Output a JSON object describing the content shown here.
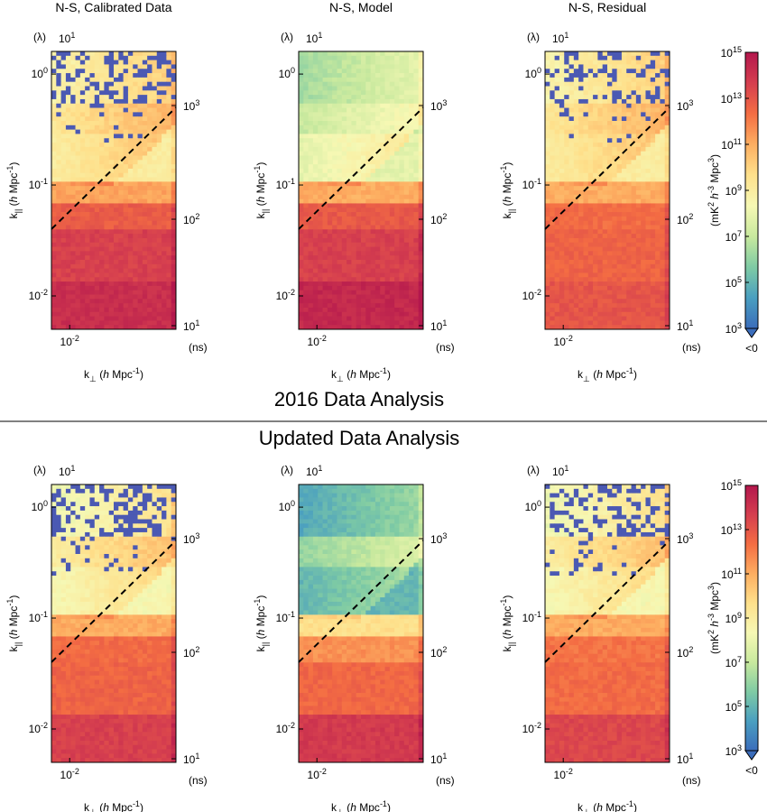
{
  "sections": [
    {
      "title": "2016 Data Analysis"
    },
    {
      "title": "Updated Data Analysis"
    }
  ],
  "panel_titles": [
    "N-S, Calibrated Data",
    "N-S, Model",
    "N-S, Residual"
  ],
  "axes": {
    "xlabel_base": "k",
    "xlabel_sub": "⊥",
    "ylabel_base": "k",
    "ylabel_sub": "||",
    "unit_h": "h",
    "unit_rest": " Mpc",
    "unit_exp": "-1",
    "top_axis_label": "(λ)",
    "top_tick": {
      "base": "10",
      "exp": "1"
    },
    "right_axis_label": "(ns)",
    "right_ticks": [
      {
        "base": "10",
        "exp": "1"
      },
      {
        "base": "10",
        "exp": "2"
      },
      {
        "base": "10",
        "exp": "3"
      }
    ],
    "left_ticks": [
      {
        "base": "10",
        "exp": "0"
      },
      {
        "base": "10",
        "exp": "-1"
      },
      {
        "base": "10",
        "exp": "-2"
      }
    ],
    "bottom_tick": {
      "base": "10",
      "exp": "-2"
    }
  },
  "colorbar": {
    "label_parts": [
      "(mK",
      "2",
      " ",
      "h",
      "-3",
      " Mpc",
      "3",
      ")"
    ],
    "ticks": [
      {
        "base": "10",
        "exp": "15"
      },
      {
        "base": "10",
        "exp": "13"
      },
      {
        "base": "10",
        "exp": "11"
      },
      {
        "base": "10",
        "exp": "9"
      },
      {
        "base": "10",
        "exp": "7"
      },
      {
        "base": "10",
        "exp": "5"
      },
      {
        "base": "10",
        "exp": "3"
      }
    ],
    "underflow_label": "<0",
    "colors": [
      "#3b6dbb",
      "#4a9fc0",
      "#7fcba4",
      "#c8e99e",
      "#f6f8b4",
      "#fee08b",
      "#fdae61",
      "#f46d43",
      "#d53e4f",
      "#b3174d"
    ]
  },
  "chart_data": {
    "type": "heatmap",
    "x_axis": {
      "quantity": "k_perp",
      "range": [
        0.007,
        0.08
      ],
      "scale": "log"
    },
    "y_axis": {
      "quantity": "k_parallel",
      "range": [
        0.005,
        1.6
      ],
      "scale": "log"
    },
    "color_scale": {
      "range": [
        1000,
        1000000000000000.0
      ],
      "scale": "log"
    },
    "wedge_line": {
      "style": "dashed",
      "from": [
        0.007,
        0.04
      ],
      "to": [
        0.08,
        0.5
      ]
    },
    "rows": [
      {
        "section": "2016 Data Analysis",
        "panels": [
          {
            "title": "N-S, Calibrated Data",
            "bands": [
              {
                "k_par": [
                  0.005,
                  0.014
                ],
                "log10_power": 14.2
              },
              {
                "k_par": [
                  0.014,
                  0.038
                ],
                "log10_power": 13.6
              },
              {
                "k_par": [
                  0.038,
                  0.07
                ],
                "log10_power": 12.8
              },
              {
                "k_par": [
                  0.07,
                  0.11
                ],
                "log10_power": 11.2
              },
              {
                "k_par": [
                  0.11,
                  0.3
                ],
                "log10_power": 9.0
              },
              {
                "k_par": [
                  0.3,
                  0.55
                ],
                "log10_power": 9.3
              },
              {
                "k_par": [
                  0.55,
                  1.6
                ],
                "log10_power": 8.6
              }
            ],
            "negative_pixel_density": 0.25
          },
          {
            "title": "N-S, Model",
            "bands": [
              {
                "k_par": [
                  0.005,
                  0.014
                ],
                "log10_power": 14.4
              },
              {
                "k_par": [
                  0.014,
                  0.038
                ],
                "log10_power": 13.6
              },
              {
                "k_par": [
                  0.038,
                  0.07
                ],
                "log10_power": 12.9
              },
              {
                "k_par": [
                  0.07,
                  0.11
                ],
                "log10_power": 11.0
              },
              {
                "k_par": [
                  0.11,
                  0.3
                ],
                "log10_power": 7.8
              },
              {
                "k_par": [
                  0.3,
                  0.55
                ],
                "log10_power": 7.0
              },
              {
                "k_par": [
                  0.55,
                  1.6
                ],
                "log10_power": 6.3
              }
            ],
            "negative_pixel_density": 0.0
          },
          {
            "title": "N-S, Residual",
            "bands": [
              {
                "k_par": [
                  0.005,
                  0.014
                ],
                "log10_power": 13.0
              },
              {
                "k_par": [
                  0.014,
                  0.038
                ],
                "log10_power": 12.6
              },
              {
                "k_par": [
                  0.038,
                  0.07
                ],
                "log10_power": 12.4
              },
              {
                "k_par": [
                  0.07,
                  0.11
                ],
                "log10_power": 11.0
              },
              {
                "k_par": [
                  0.11,
                  0.3
                ],
                "log10_power": 9.0
              },
              {
                "k_par": [
                  0.3,
                  0.55
                ],
                "log10_power": 9.3
              },
              {
                "k_par": [
                  0.55,
                  1.6
                ],
                "log10_power": 8.6
              }
            ],
            "negative_pixel_density": 0.25
          }
        ]
      },
      {
        "section": "Updated Data Analysis",
        "panels": [
          {
            "title": "N-S, Calibrated Data",
            "bands": [
              {
                "k_par": [
                  0.005,
                  0.014
                ],
                "log10_power": 13.6
              },
              {
                "k_par": [
                  0.014,
                  0.038
                ],
                "log10_power": 12.6
              },
              {
                "k_par": [
                  0.038,
                  0.07
                ],
                "log10_power": 12.4
              },
              {
                "k_par": [
                  0.07,
                  0.11
                ],
                "log10_power": 11.0
              },
              {
                "k_par": [
                  0.11,
                  0.3
                ],
                "log10_power": 8.4
              },
              {
                "k_par": [
                  0.3,
                  0.55
                ],
                "log10_power": 9.0
              },
              {
                "k_par": [
                  0.55,
                  1.6
                ],
                "log10_power": 8.0
              }
            ],
            "negative_pixel_density": 0.3
          },
          {
            "title": "N-S, Model",
            "bands": [
              {
                "k_par": [
                  0.005,
                  0.014
                ],
                "log10_power": 13.8
              },
              {
                "k_par": [
                  0.014,
                  0.038
                ],
                "log10_power": 12.5
              },
              {
                "k_par": [
                  0.038,
                  0.07
                ],
                "log10_power": 11.6
              },
              {
                "k_par": [
                  0.07,
                  0.11
                ],
                "log10_power": 9.6
              },
              {
                "k_par": [
                  0.11,
                  0.3
                ],
                "log10_power": 5.0
              },
              {
                "k_par": [
                  0.3,
                  0.55
                ],
                "log10_power": 6.0
              },
              {
                "k_par": [
                  0.55,
                  1.6
                ],
                "log10_power": 4.6
              }
            ],
            "negative_pixel_density": 0.0
          },
          {
            "title": "N-S, Residual",
            "bands": [
              {
                "k_par": [
                  0.005,
                  0.014
                ],
                "log10_power": 13.4
              },
              {
                "k_par": [
                  0.014,
                  0.038
                ],
                "log10_power": 12.4
              },
              {
                "k_par": [
                  0.038,
                  0.07
                ],
                "log10_power": 12.2
              },
              {
                "k_par": [
                  0.07,
                  0.11
                ],
                "log10_power": 11.0
              },
              {
                "k_par": [
                  0.11,
                  0.3
                ],
                "log10_power": 8.4
              },
              {
                "k_par": [
                  0.3,
                  0.55
                ],
                "log10_power": 9.0
              },
              {
                "k_par": [
                  0.55,
                  1.6
                ],
                "log10_power": 8.0
              }
            ],
            "negative_pixel_density": 0.3
          }
        ]
      }
    ]
  }
}
